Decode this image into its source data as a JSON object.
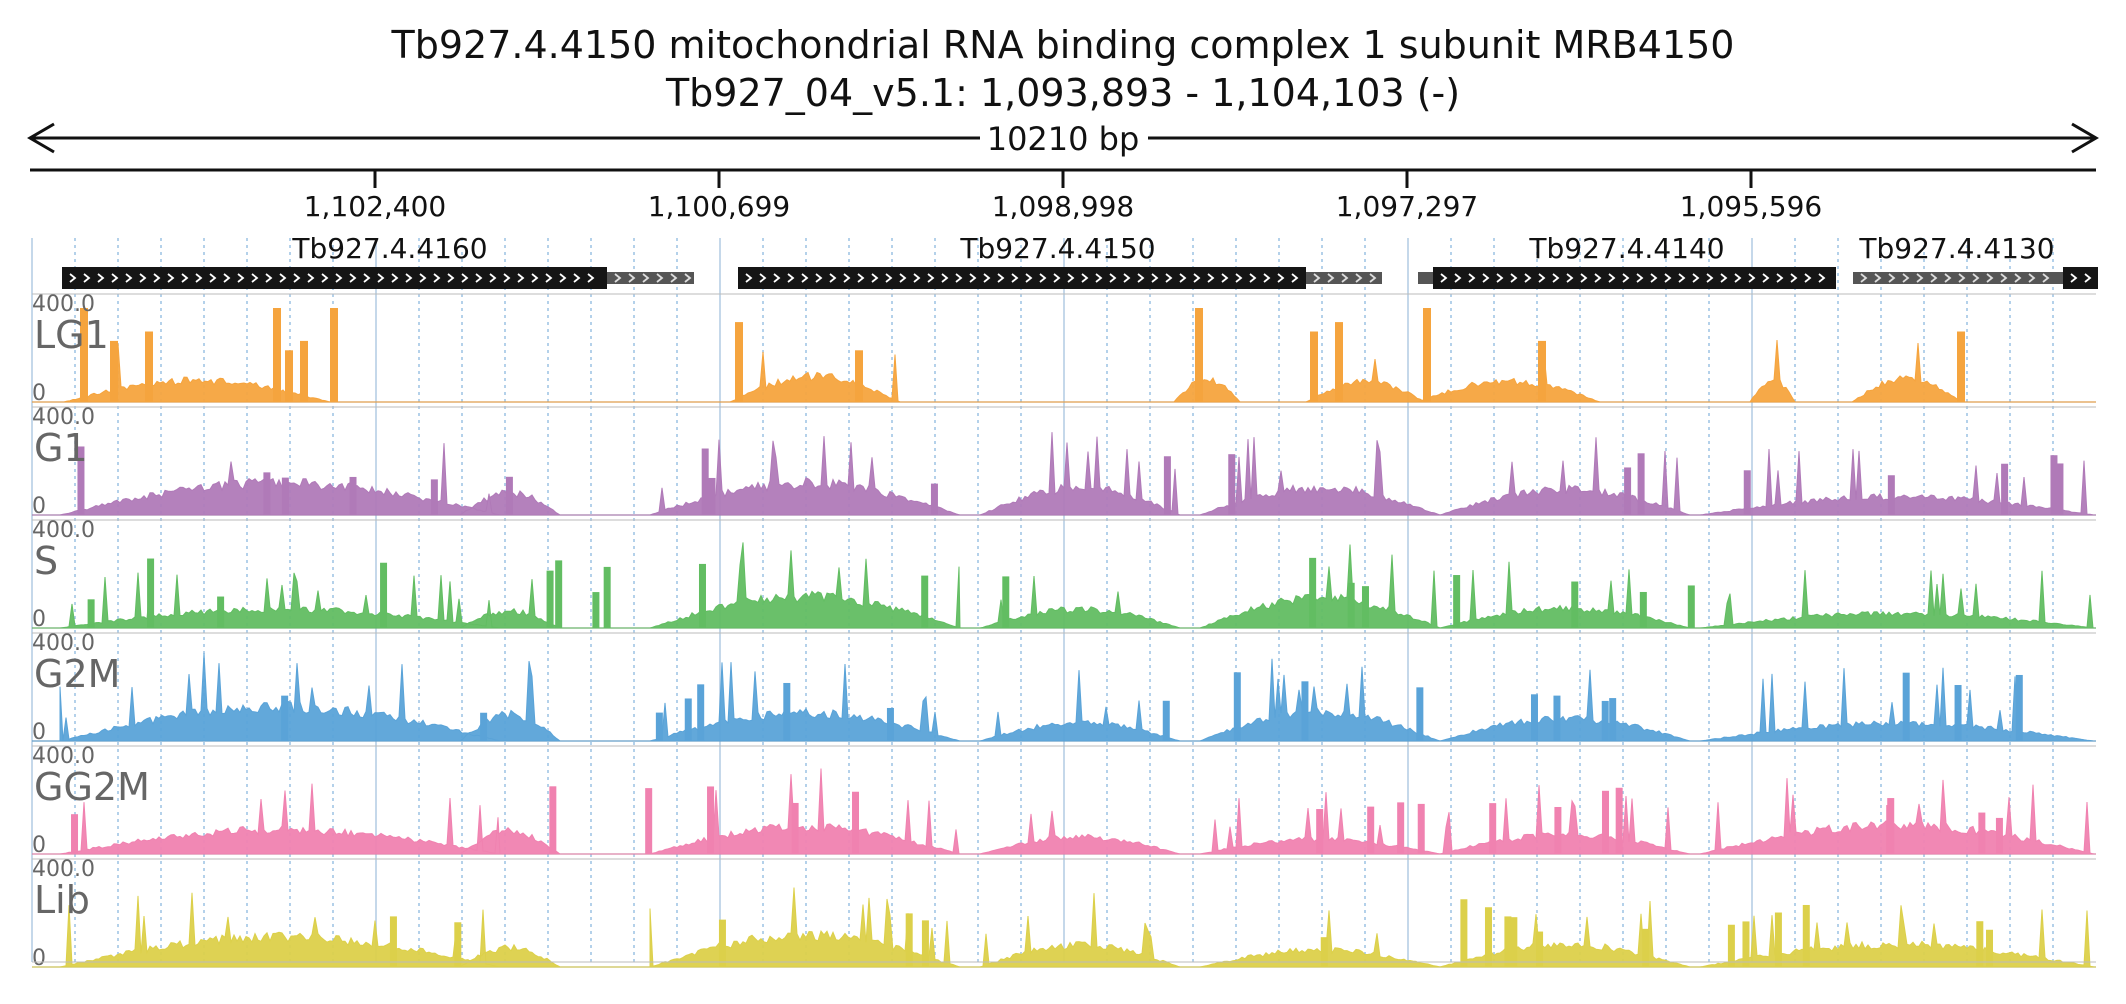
{
  "header": {
    "title": "Tb927.4.4150  mitochondrial RNA binding complex 1 subunit MRB4150",
    "locus": "Tb927_04_v5.1: 1,093,893 - 1,104,103 (-)",
    "span_label": "10210 bp"
  },
  "ruler": {
    "ticks": [
      "1,102,400",
      "1,100,699",
      "1,098,998",
      "1,097,297",
      "1,095,596"
    ]
  },
  "genes": [
    {
      "id": "Tb927.4.4160"
    },
    {
      "id": "Tb927.4.4150"
    },
    {
      "id": "Tb927.4.4140"
    },
    {
      "id": "Tb927.4.4130"
    }
  ],
  "tracks": [
    {
      "name": "LG1",
      "max_label": "400.0",
      "min_label": "0",
      "color": "#f5a43e"
    },
    {
      "name": "G1",
      "max_label": "400.0",
      "min_label": "0",
      "color": "#b07ab8"
    },
    {
      "name": "S",
      "max_label": "400.0",
      "min_label": "0",
      "color": "#62bd62"
    },
    {
      "name": "G2M",
      "max_label": "400.0",
      "min_label": "0",
      "color": "#5aa3d8"
    },
    {
      "name": "GG2M",
      "max_label": "400.0",
      "min_label": "0",
      "color": "#f082b0"
    },
    {
      "name": "Lib",
      "max_label": "400.0",
      "min_label": "0",
      "color": "#dcd04a"
    }
  ]
}
